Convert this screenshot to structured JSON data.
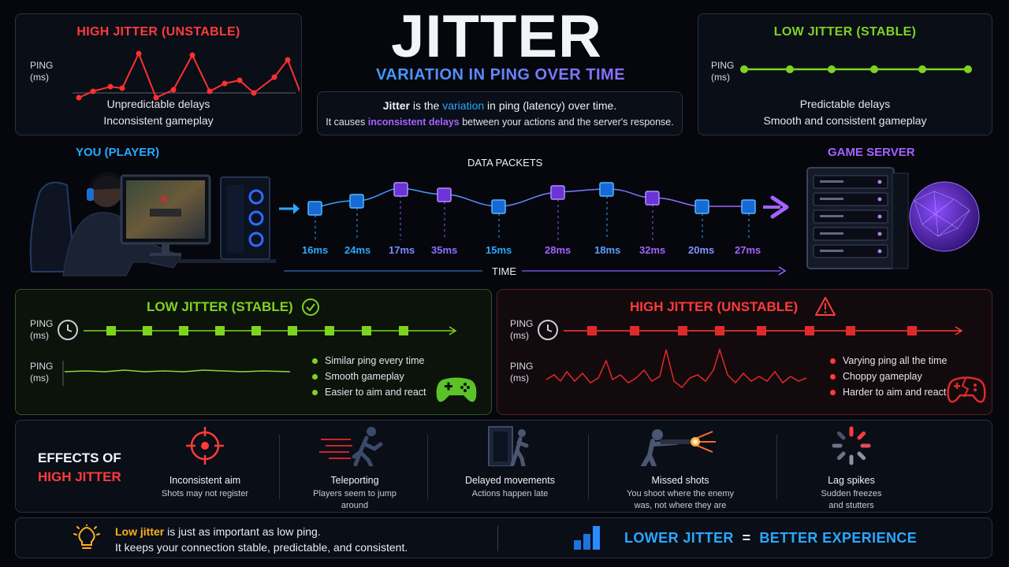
{
  "title": "JITTER",
  "subtitle": "VARIATION IN PING OVER TIME",
  "definition": {
    "line1_a": "Jitter",
    "line1_b": " is the ",
    "line1_c": "variation",
    "line1_d": " in ping (latency) over time.",
    "line2_a": "It causes ",
    "line2_b": "inconsistent delays",
    "line2_c": " between your actions and the server's response."
  },
  "top_left_card": {
    "title": "HIGH JITTER (UNSTABLE)",
    "axis_label_1": "PING",
    "axis_label_2": "(ms)",
    "desc_1": "Unpredictable delays",
    "desc_2": "Inconsistent gameplay"
  },
  "top_right_card": {
    "title": "LOW JITTER (STABLE)",
    "axis_label_1": "PING",
    "axis_label_2": "(ms)",
    "desc_1": "Predictable delays",
    "desc_2": "Smooth and consistent gameplay"
  },
  "packets": {
    "you_label": "YOU (PLAYER)",
    "server_label": "GAME SERVER",
    "title": "DATA PACKETS",
    "time_label": "TIME",
    "values": [
      "16ms",
      "24ms",
      "17ms",
      "35ms",
      "15ms",
      "28ms",
      "18ms",
      "32ms",
      "20ms",
      "27ms"
    ]
  },
  "low_panel": {
    "title": "LOW JITTER (STABLE)",
    "axis_label_1": "PING",
    "axis_label_2": "(ms)",
    "bullets": [
      "Similar ping every time",
      "Smooth gameplay",
      "Easier to aim and react"
    ]
  },
  "high_panel": {
    "title": "HIGH JITTER (UNSTABLE)",
    "axis_label_1": "PING",
    "axis_label_2": "(ms)",
    "bullets": [
      "Varying ping all the time",
      "Choppy gameplay",
      "Harder to aim and react"
    ]
  },
  "effects": {
    "heading_1": "EFFECTS OF",
    "heading_2": "HIGH JITTER",
    "items": [
      {
        "title": "Inconsistent aim",
        "sub_1": "Shots may not register",
        "sub_2": "",
        "icon": "crosshair-icon"
      },
      {
        "title": "Teleporting",
        "sub_1": "Players seem to jump",
        "sub_2": "around",
        "icon": "running-player-icon"
      },
      {
        "title": "Delayed movements",
        "sub_1": "Actions happen late",
        "sub_2": "",
        "icon": "door-player-icon"
      },
      {
        "title": "Missed shots",
        "sub_1": "You shoot where the enemy",
        "sub_2": "was, not where they are",
        "icon": "soldier-shooting-icon"
      },
      {
        "title": "Lag spikes",
        "sub_1": "Sudden freezes",
        "sub_2": "and stutters",
        "icon": "loading-spinner-icon"
      }
    ]
  },
  "footer": {
    "tip_a": "Low jitter",
    "tip_b": " is just as important as low ping.",
    "tip_2": "It keeps your connection stable, predictable, and consistent.",
    "slogan_a": "LOWER JITTER",
    "slogan_eq": "=",
    "slogan_b": "BETTER EXPERIENCE"
  },
  "colors": {
    "high": "#ff3b3b",
    "low": "#7ed321",
    "accent_blue": "#2aa8ff",
    "accent_purple": "#a462ff"
  }
}
